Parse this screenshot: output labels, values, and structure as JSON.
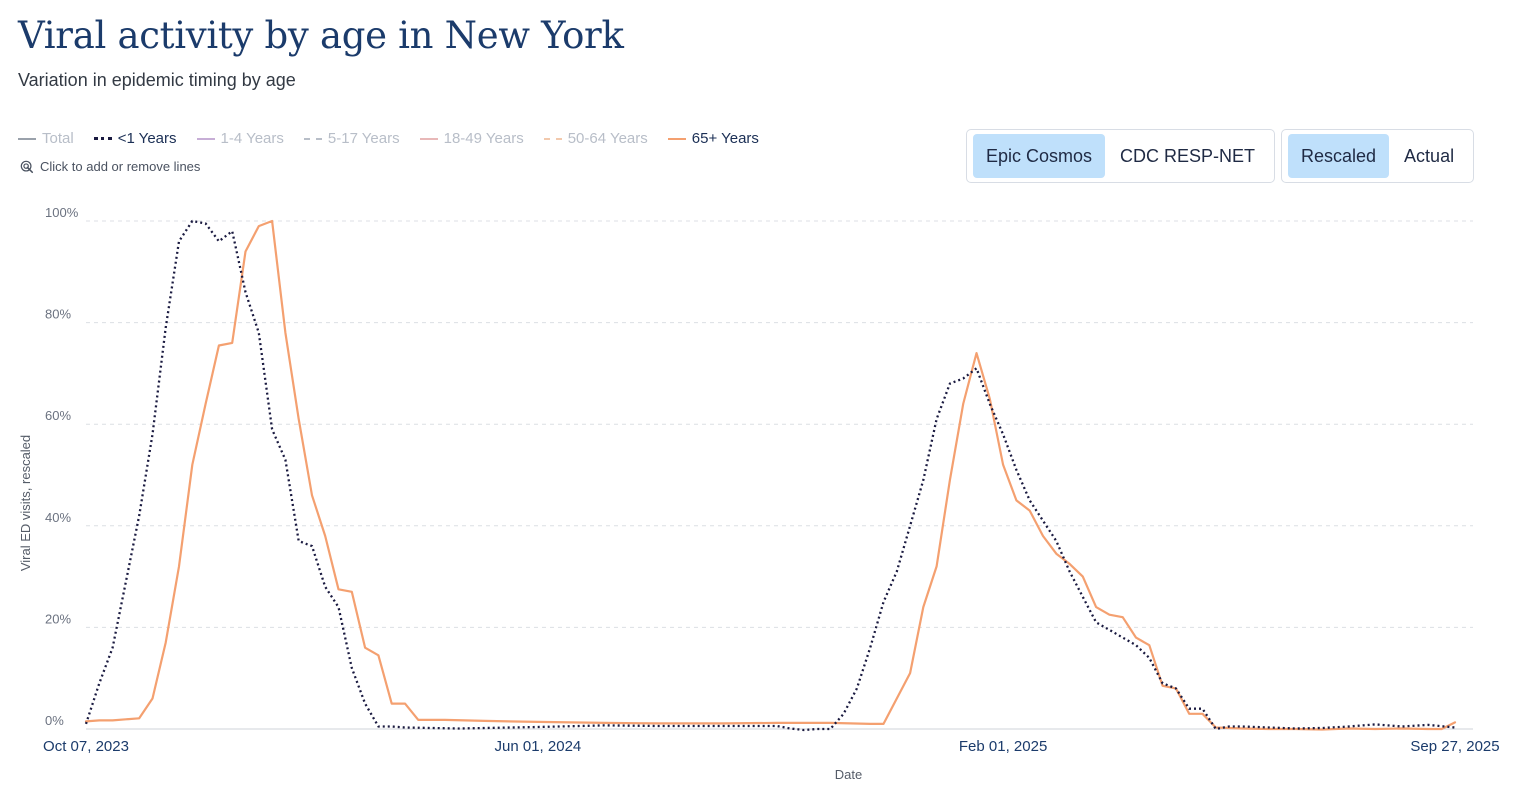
{
  "title": "Viral activity by age in New York",
  "subtitle": "Variation in epidemic timing by age",
  "legend": {
    "items": [
      {
        "label": "Total",
        "active": false,
        "style": "solid",
        "color": "#9aa1ab"
      },
      {
        "label": "<1 Years",
        "active": true,
        "style": "dotted",
        "color": "#1a1a40"
      },
      {
        "label": "1-4 Years",
        "active": false,
        "style": "solid",
        "color": "#c7aed6"
      },
      {
        "label": "5-17 Years",
        "active": false,
        "style": "dashed",
        "color": "#b8bec8"
      },
      {
        "label": "18-49 Years",
        "active": false,
        "style": "solid",
        "color": "#e8b8b8"
      },
      {
        "label": "50-64 Years",
        "active": false,
        "style": "dashed",
        "color": "#f2c9ad"
      },
      {
        "label": "65+ Years",
        "active": true,
        "style": "solid",
        "color": "#f4a070"
      }
    ],
    "hint": "Click to add or remove lines"
  },
  "source_toggle": {
    "options": [
      "Epic Cosmos",
      "CDC RESP-NET"
    ],
    "selected": "Epic Cosmos"
  },
  "scale_toggle": {
    "options": [
      "Rescaled",
      "Actual"
    ],
    "selected": "Rescaled"
  },
  "chart_data": {
    "type": "line",
    "xlabel": "Date",
    "ylabel": "Viral ED visits, rescaled",
    "ylim": [
      0,
      100
    ],
    "yticks": [
      "0%",
      "20%",
      "40%",
      "60%",
      "80%",
      "100%"
    ],
    "xlim": [
      "2023-10-07",
      "2025-09-27"
    ],
    "xticks": [
      {
        "date": "2023-10-07",
        "label": "Oct 07, 2023"
      },
      {
        "date": "2024-06-01",
        "label": "Jun 01, 2024"
      },
      {
        "date": "2025-02-01",
        "label": "Feb 01, 2025"
      },
      {
        "date": "2025-09-27",
        "label": "Sep 27, 2025"
      }
    ],
    "grid": true,
    "colors": {
      "lt1": "#1a1a40",
      "age65": "#f4a070",
      "grid": "#dcdfe4"
    },
    "series": [
      {
        "name": "<1 Years",
        "style": "dotted",
        "color": "#1a1a40",
        "points": [
          [
            "2023-10-07",
            1
          ],
          [
            "2023-10-14",
            9
          ],
          [
            "2023-10-21",
            16
          ],
          [
            "2023-10-28",
            29
          ],
          [
            "2023-11-04",
            42
          ],
          [
            "2023-11-11",
            58
          ],
          [
            "2023-11-18",
            79
          ],
          [
            "2023-11-25",
            96
          ],
          [
            "2023-12-02",
            100
          ],
          [
            "2023-12-09",
            99.5
          ],
          [
            "2023-12-16",
            96
          ],
          [
            "2023-12-23",
            98
          ],
          [
            "2023-12-30",
            86
          ],
          [
            "2024-01-06",
            78
          ],
          [
            "2024-01-13",
            59
          ],
          [
            "2024-01-20",
            53
          ],
          [
            "2024-01-27",
            37
          ],
          [
            "2024-02-03",
            36
          ],
          [
            "2024-02-10",
            28
          ],
          [
            "2024-02-17",
            24
          ],
          [
            "2024-02-24",
            12
          ],
          [
            "2024-03-02",
            5
          ],
          [
            "2024-03-09",
            0.5
          ],
          [
            "2024-03-16",
            0.5
          ],
          [
            "2024-03-23",
            0.3
          ],
          [
            "2024-04-06",
            0.2
          ],
          [
            "2024-04-20",
            0.1
          ],
          [
            "2024-05-04",
            0.2
          ],
          [
            "2024-06-01",
            0.4
          ],
          [
            "2024-07-06",
            0.7
          ],
          [
            "2024-08-03",
            0.6
          ],
          [
            "2024-09-07",
            0.6
          ],
          [
            "2024-10-05",
            0.6
          ],
          [
            "2024-10-12",
            0.1
          ],
          [
            "2024-10-19",
            -0.2
          ],
          [
            "2024-10-26",
            0
          ],
          [
            "2024-11-02",
            0
          ],
          [
            "2024-11-09",
            3
          ],
          [
            "2024-11-16",
            8
          ],
          [
            "2024-11-23",
            16
          ],
          [
            "2024-11-30",
            25
          ],
          [
            "2024-12-07",
            31
          ],
          [
            "2024-12-14",
            40
          ],
          [
            "2024-12-21",
            49
          ],
          [
            "2024-12-28",
            61
          ],
          [
            "2025-01-04",
            68
          ],
          [
            "2025-01-11",
            69
          ],
          [
            "2025-01-18",
            71
          ],
          [
            "2025-01-25",
            64
          ],
          [
            "2025-02-01",
            58
          ],
          [
            "2025-02-08",
            51
          ],
          [
            "2025-02-15",
            45
          ],
          [
            "2025-02-22",
            41
          ],
          [
            "2025-03-01",
            37
          ],
          [
            "2025-03-08",
            31
          ],
          [
            "2025-03-15",
            26
          ],
          [
            "2025-03-22",
            21
          ],
          [
            "2025-03-29",
            19.5
          ],
          [
            "2025-04-05",
            18
          ],
          [
            "2025-04-12",
            16.5
          ],
          [
            "2025-04-19",
            14
          ],
          [
            "2025-04-26",
            9
          ],
          [
            "2025-05-03",
            8
          ],
          [
            "2025-05-10",
            4
          ],
          [
            "2025-05-17",
            4
          ],
          [
            "2025-05-24",
            0
          ],
          [
            "2025-05-31",
            0.5
          ],
          [
            "2025-06-07",
            0.5
          ],
          [
            "2025-06-21",
            0.3
          ],
          [
            "2025-07-05",
            0.1
          ],
          [
            "2025-07-19",
            0.2
          ],
          [
            "2025-08-02",
            0.5
          ],
          [
            "2025-08-16",
            0.9
          ],
          [
            "2025-08-30",
            0.5
          ],
          [
            "2025-09-13",
            0.8
          ],
          [
            "2025-09-27",
            0.3
          ]
        ]
      },
      {
        "name": "65+ Years",
        "style": "solid",
        "color": "#f4a070",
        "points": [
          [
            "2023-10-07",
            1.5
          ],
          [
            "2023-10-14",
            1.7
          ],
          [
            "2023-10-21",
            1.7
          ],
          [
            "2023-10-28",
            1.9
          ],
          [
            "2023-11-04",
            2.1
          ],
          [
            "2023-11-11",
            6
          ],
          [
            "2023-11-18",
            17
          ],
          [
            "2023-11-25",
            32
          ],
          [
            "2023-12-02",
            52
          ],
          [
            "2023-12-09",
            64
          ],
          [
            "2023-12-16",
            75.5
          ],
          [
            "2023-12-23",
            76
          ],
          [
            "2023-12-30",
            94
          ],
          [
            "2024-01-06",
            99
          ],
          [
            "2024-01-13",
            100
          ],
          [
            "2024-01-20",
            78
          ],
          [
            "2024-01-27",
            61
          ],
          [
            "2024-02-03",
            46
          ],
          [
            "2024-02-10",
            38
          ],
          [
            "2024-02-17",
            27.5
          ],
          [
            "2024-02-24",
            27
          ],
          [
            "2024-03-02",
            16
          ],
          [
            "2024-03-09",
            14.5
          ],
          [
            "2024-03-16",
            5
          ],
          [
            "2024-03-23",
            5
          ],
          [
            "2024-03-30",
            1.8
          ],
          [
            "2024-04-13",
            1.8
          ],
          [
            "2024-05-04",
            1.6
          ],
          [
            "2024-06-01",
            1.4
          ],
          [
            "2024-07-06",
            1.2
          ],
          [
            "2024-08-03",
            1.1
          ],
          [
            "2024-09-07",
            1.1
          ],
          [
            "2024-10-05",
            1.2
          ],
          [
            "2024-11-02",
            1.2
          ],
          [
            "2024-11-23",
            1
          ],
          [
            "2024-11-30",
            1
          ],
          [
            "2024-12-07",
            6
          ],
          [
            "2024-12-14",
            11
          ],
          [
            "2024-12-21",
            24
          ],
          [
            "2024-12-28",
            32
          ],
          [
            "2025-01-04",
            49
          ],
          [
            "2025-01-11",
            64
          ],
          [
            "2025-01-18",
            74
          ],
          [
            "2025-01-25",
            65
          ],
          [
            "2025-02-01",
            52
          ],
          [
            "2025-02-08",
            45
          ],
          [
            "2025-02-15",
            43
          ],
          [
            "2025-02-22",
            38
          ],
          [
            "2025-03-01",
            34.5
          ],
          [
            "2025-03-08",
            32.5
          ],
          [
            "2025-03-15",
            30
          ],
          [
            "2025-03-22",
            24
          ],
          [
            "2025-03-29",
            22.5
          ],
          [
            "2025-04-05",
            22
          ],
          [
            "2025-04-12",
            18
          ],
          [
            "2025-04-19",
            16.5
          ],
          [
            "2025-04-26",
            8.5
          ],
          [
            "2025-05-03",
            8
          ],
          [
            "2025-05-10",
            3
          ],
          [
            "2025-05-17",
            3
          ],
          [
            "2025-05-24",
            0.3
          ],
          [
            "2025-06-07",
            0.1
          ],
          [
            "2025-06-21",
            0
          ],
          [
            "2025-07-05",
            0
          ],
          [
            "2025-07-19",
            -0.1
          ],
          [
            "2025-08-02",
            0.1
          ],
          [
            "2025-08-16",
            0
          ],
          [
            "2025-08-30",
            0.1
          ],
          [
            "2025-09-13",
            0
          ],
          [
            "2025-09-20",
            0
          ],
          [
            "2025-09-27",
            1.3
          ]
        ]
      }
    ]
  }
}
